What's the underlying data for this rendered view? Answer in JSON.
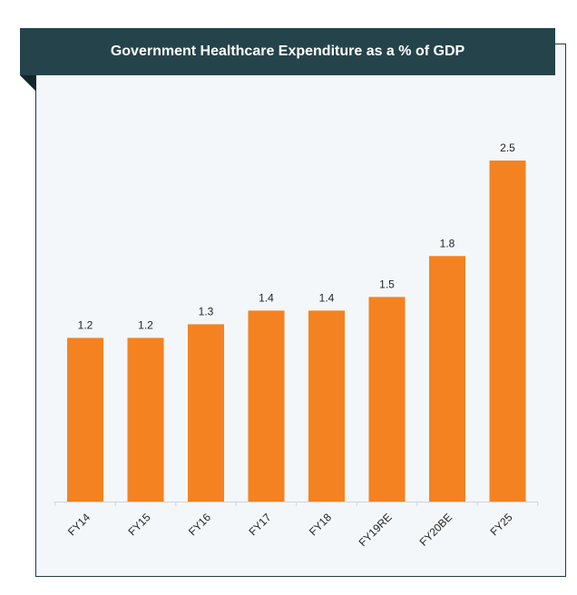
{
  "chart_data": {
    "type": "bar",
    "title": "Government Healthcare Expenditure as a % of GDP",
    "categories": [
      "FY14",
      "FY15",
      "FY16",
      "FY17",
      "FY18",
      "FY19RE",
      "FY20BE",
      "FY25"
    ],
    "values": [
      1.2,
      1.2,
      1.3,
      1.4,
      1.4,
      1.5,
      1.8,
      2.5
    ],
    "data_labels": [
      "1.2",
      "1.2",
      "1.3",
      "1.4",
      "1.4",
      "1.5",
      "1.8",
      "2.5"
    ],
    "ylim": [
      0,
      2.5
    ],
    "grid": false,
    "legend": "none",
    "bar_color": "#f48220",
    "header_color": "#25434b"
  }
}
